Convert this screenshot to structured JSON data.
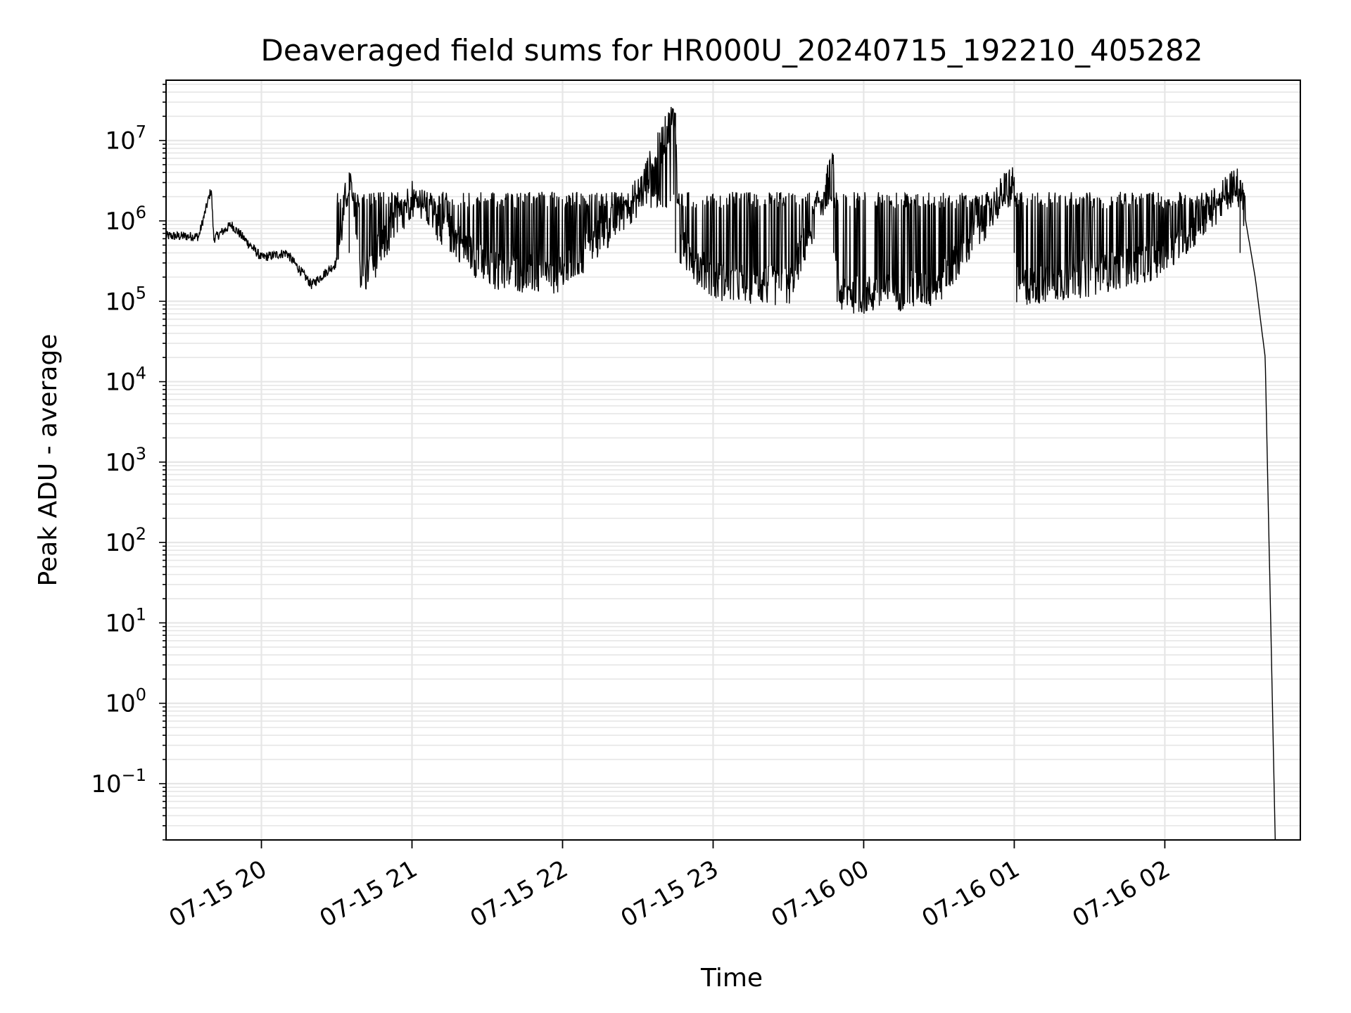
{
  "chart_data": {
    "type": "line",
    "title": "Deaveraged field sums for HR000U_20240715_192210_405282",
    "xlabel": "Time",
    "ylabel": "Peak ADU - average",
    "y_scale": "log",
    "ylim_exponent": [
      -1.7,
      7.75
    ],
    "x_range": [
      "2024-07-15 19:22",
      "2024-07-16 02:54"
    ],
    "grid": true,
    "grid_minor": true,
    "line_color": "#000000",
    "grid_color": "#e6e6e6",
    "x_ticks": [
      {
        "time": "2024-07-15 20:00",
        "label": "07-15 20"
      },
      {
        "time": "2024-07-15 21:00",
        "label": "07-15 21"
      },
      {
        "time": "2024-07-15 22:00",
        "label": "07-15 22"
      },
      {
        "time": "2024-07-15 23:00",
        "label": "07-15 23"
      },
      {
        "time": "2024-07-16 00:00",
        "label": "07-16 00"
      },
      {
        "time": "2024-07-16 01:00",
        "label": "07-16 01"
      },
      {
        "time": "2024-07-16 02:00",
        "label": "07-16 02"
      }
    ],
    "y_ticks": [
      {
        "exp": -1,
        "base": "10",
        "sup": "−1"
      },
      {
        "exp": 0,
        "base": "10",
        "sup": "0"
      },
      {
        "exp": 1,
        "base": "10",
        "sup": "1"
      },
      {
        "exp": 2,
        "base": "10",
        "sup": "2"
      },
      {
        "exp": 3,
        "base": "10",
        "sup": "3"
      },
      {
        "exp": 4,
        "base": "10",
        "sup": "4"
      },
      {
        "exp": 5,
        "base": "10",
        "sup": "5"
      },
      {
        "exp": 6,
        "base": "10",
        "sup": "6"
      },
      {
        "exp": 7,
        "base": "10",
        "sup": "7"
      }
    ],
    "series": [
      {
        "points": [
          {
            "t": "2024-07-15 19:22",
            "v": 650000
          },
          {
            "t": "2024-07-15 19:35",
            "v": 640000
          },
          {
            "t": "2024-07-15 19:40",
            "v": 2500000
          },
          {
            "t": "2024-07-15 19:41",
            "v": 600000
          },
          {
            "t": "2024-07-15 19:48",
            "v": 900000
          },
          {
            "t": "2024-07-15 20:00",
            "v": 350000
          },
          {
            "t": "2024-07-15 20:10",
            "v": 400000
          },
          {
            "t": "2024-07-15 20:20",
            "v": 160000
          },
          {
            "t": "2024-07-15 20:30",
            "v": 300000
          },
          {
            "t": "2024-07-15 20:35",
            "v": 4000000
          },
          {
            "t": "2024-07-15 20:40",
            "v": 180000
          },
          {
            "t": "2024-07-15 21:00",
            "v": 2000000
          },
          {
            "t": "2024-07-15 21:30",
            "v": 250000
          },
          {
            "t": "2024-07-15 22:00",
            "v": 200000
          },
          {
            "t": "2024-07-15 22:30",
            "v": 2000000
          },
          {
            "t": "2024-07-15 22:45",
            "v": 22000000
          },
          {
            "t": "2024-07-15 22:46",
            "v": 500000
          },
          {
            "t": "2024-07-15 23:00",
            "v": 180000
          },
          {
            "t": "2024-07-15 23:30",
            "v": 150000
          },
          {
            "t": "2024-07-15 23:48",
            "v": 4500000
          },
          {
            "t": "2024-07-15 23:49",
            "v": 130000
          },
          {
            "t": "2024-07-16 00:00",
            "v": 120000
          },
          {
            "t": "2024-07-16 00:30",
            "v": 150000
          },
          {
            "t": "2024-07-16 01:00",
            "v": 3500000
          },
          {
            "t": "2024-07-16 01:01",
            "v": 150000
          },
          {
            "t": "2024-07-16 01:30",
            "v": 200000
          },
          {
            "t": "2024-07-16 02:00",
            "v": 350000
          },
          {
            "t": "2024-07-16 02:30",
            "v": 3200000
          },
          {
            "t": "2024-07-16 02:32",
            "v": 1100000
          },
          {
            "t": "2024-07-16 02:36",
            "v": 200000
          },
          {
            "t": "2024-07-16 02:40",
            "v": 20000
          },
          {
            "t": "2024-07-16 02:44",
            "v": 0.02
          }
        ],
        "noise_band_low": 100000,
        "noise_band_high": 2300000
      }
    ]
  }
}
